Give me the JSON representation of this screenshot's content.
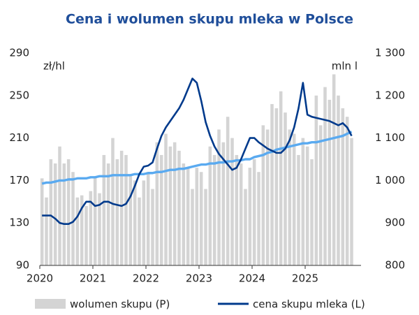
{
  "chart_data": {
    "type": "combo",
    "title": "Cena i wolumen skupu mleka w Polsce",
    "y_label": "zł/hl",
    "y2_label": "mln l",
    "categories": [
      "2020",
      null,
      null,
      null,
      null,
      null,
      null,
      null,
      null,
      null,
      null,
      null,
      "2021",
      null,
      null,
      null,
      null,
      null,
      null,
      null,
      null,
      null,
      null,
      null,
      "2022",
      null,
      null,
      null,
      null,
      null,
      null,
      null,
      null,
      null,
      null,
      null,
      "2023",
      null,
      null,
      null,
      null,
      null,
      null,
      null,
      null,
      null,
      null,
      null,
      "2024",
      null,
      null,
      null,
      null,
      null,
      null,
      null,
      null,
      null,
      null,
      null,
      "2025",
      null,
      null,
      null,
      null,
      null,
      null,
      null,
      null,
      null,
      null
    ],
    "ylim": [
      90,
      290
    ],
    "yticks": [
      90,
      130,
      170,
      210,
      250,
      290
    ],
    "y2lim": [
      800,
      1300
    ],
    "y2ticks": [
      {
        "value": 800,
        "label": "800"
      },
      {
        "value": 900,
        "label": "900"
      },
      {
        "value": 1000,
        "label": "1 000"
      },
      {
        "value": 1100,
        "label": "1 100"
      },
      {
        "value": 1200,
        "label": "1 200"
      },
      {
        "value": 1300,
        "label": "1 300"
      }
    ],
    "series": [
      {
        "name": "wolumen skupu (P)",
        "type": "bar",
        "axis": "y2",
        "color": "#d4d4d4",
        "values": [
          1005,
          960,
          1050,
          1040,
          1080,
          1040,
          1050,
          1020,
          960,
          965,
          940,
          975,
          1010,
          970,
          1060,
          1040,
          1100,
          1050,
          1070,
          1060,
          1010,
          1000,
          960,
          1000,
          1020,
          980,
          1090,
          1060,
          1110,
          1080,
          1090,
          1070,
          1040,
          1030,
          980,
          1030,
          1020,
          980,
          1080,
          1060,
          1120,
          1090,
          1150,
          1100,
          1060,
          1040,
          980,
          1030,
          1050,
          1020,
          1130,
          1120,
          1180,
          1170,
          1210,
          1160,
          1120,
          1110,
          1060,
          1100,
          1080,
          1050,
          1200,
          1130,
          1220,
          1190,
          1250,
          1200,
          1170,
          1150,
          1100
        ]
      },
      {
        "name": "cena skupu mleka (L)",
        "type": "line",
        "color": "#003a8c",
        "values": [
          137,
          137,
          137,
          134,
          130,
          129,
          129,
          131,
          136,
          144,
          150,
          150,
          146,
          147,
          150,
          150,
          148,
          147,
          146,
          148,
          155,
          165,
          176,
          183,
          184,
          187,
          200,
          212,
          220,
          226,
          232,
          238,
          246,
          256,
          266,
          262,
          245,
          225,
          212,
          202,
          195,
          190,
          185,
          180,
          182,
          190,
          200,
          210,
          210,
          206,
          203,
          200,
          198,
          196,
          196,
          200,
          208,
          220,
          238,
          262,
          232,
          230,
          229,
          228,
          227,
          226,
          224,
          222,
          224,
          220,
          212
        ]
      },
      {
        "type": "line",
        "color": "#5aaaf0",
        "values": [
          167,
          168,
          168,
          169,
          170,
          170,
          171,
          171,
          172,
          172,
          172,
          173,
          173,
          174,
          174,
          174,
          175,
          175,
          175,
          175,
          175,
          176,
          176,
          176,
          177,
          177,
          178,
          178,
          179,
          180,
          180,
          181,
          181,
          182,
          183,
          184,
          185,
          185,
          186,
          186,
          187,
          187,
          188,
          188,
          189,
          189,
          190,
          190,
          192,
          193,
          194,
          196,
          197,
          199,
          200,
          201,
          202,
          203,
          204,
          205,
          205,
          206,
          206,
          207,
          208,
          209,
          210,
          211,
          212,
          214,
          216
        ]
      }
    ]
  }
}
